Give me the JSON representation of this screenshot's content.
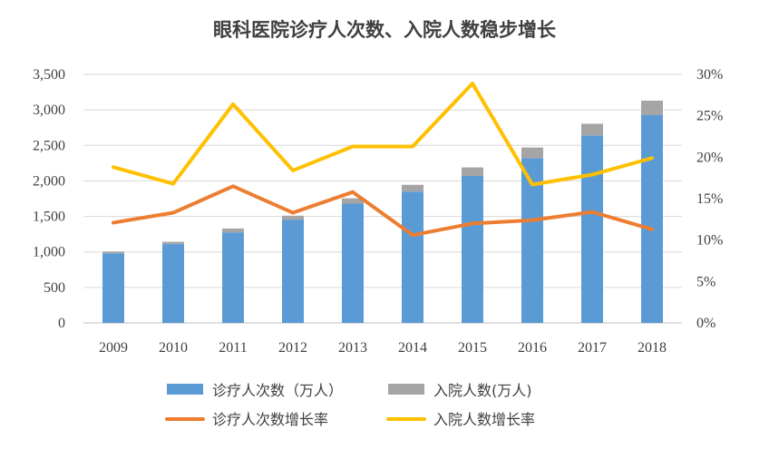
{
  "chart_data": {
    "type": "bar",
    "title": "眼科医院诊疗人次数、入院人数稳步增长",
    "categories": [
      "2009",
      "2010",
      "2011",
      "2012",
      "2013",
      "2014",
      "2015",
      "2016",
      "2017",
      "2018"
    ],
    "y_left": {
      "ylim": [
        0,
        3500
      ],
      "ticks": [
        "0",
        "500",
        "1,000",
        "1,500",
        "2,000",
        "2,500",
        "3,000",
        "3,500"
      ]
    },
    "y_right": {
      "ylim": [
        0,
        30
      ],
      "ticks": [
        "0%",
        "5%",
        "10%",
        "15%",
        "20%",
        "25%",
        "30%"
      ]
    },
    "grid": true,
    "legend_position": "bottom",
    "series": [
      {
        "name": "诊疗人次数（万人）",
        "kind": "bar",
        "axis": "left",
        "color": "#5B9BD5",
        "stack": "s1",
        "values": [
          980,
          1110,
          1275,
          1455,
          1680,
          1850,
          2070,
          2320,
          2640,
          2930
        ]
      },
      {
        "name": "入院人数(万人)",
        "kind": "bar",
        "axis": "left",
        "color": "#A5A5A5",
        "stack": "s1",
        "values": [
          25,
          32,
          55,
          55,
          75,
          95,
          120,
          150,
          165,
          200
        ]
      },
      {
        "name": "诊疗人次数增长率",
        "kind": "line",
        "axis": "right",
        "color": "#ED7D31",
        "values": [
          12.1,
          13.3,
          16.5,
          13.3,
          15.8,
          10.6,
          12.0,
          12.4,
          13.4,
          11.3
        ]
      },
      {
        "name": "入院人数增长率",
        "kind": "line",
        "axis": "right",
        "color": "#FFC000",
        "values": [
          18.8,
          16.8,
          26.4,
          18.4,
          21.3,
          21.3,
          28.9,
          16.7,
          17.9,
          19.9
        ]
      }
    ]
  }
}
